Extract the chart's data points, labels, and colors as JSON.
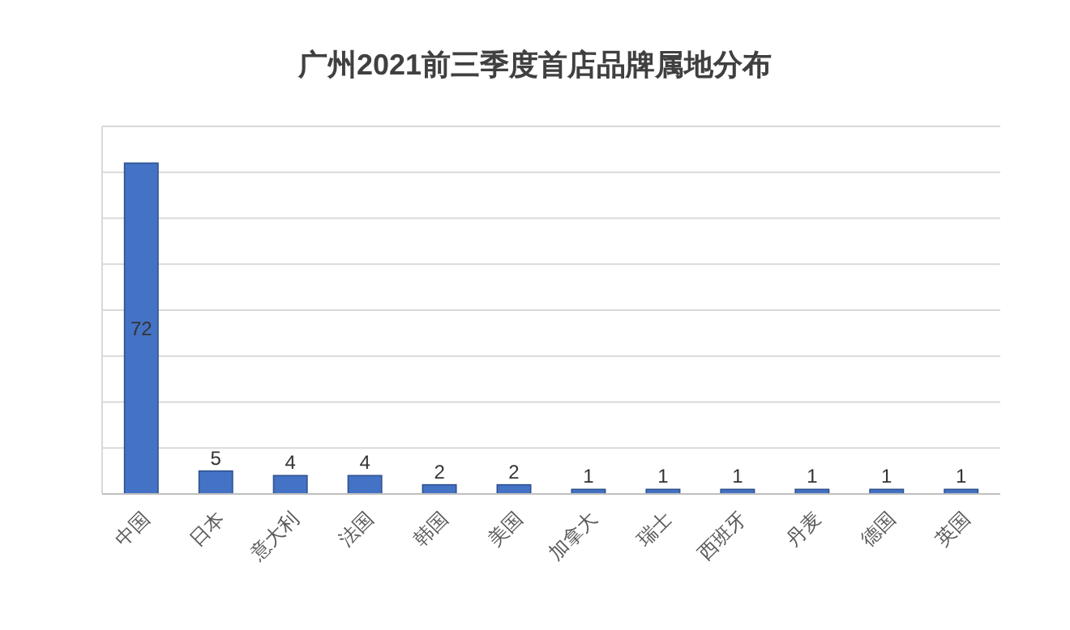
{
  "chart_data": {
    "type": "bar",
    "title": "广州2021前三季度首店品牌属地分布",
    "categories": [
      "中国",
      "日本",
      "意大利",
      "法国",
      "韩国",
      "美国",
      "加拿大",
      "瑞士",
      "西班牙",
      "丹麦",
      "德国",
      "英国"
    ],
    "values": [
      72,
      5,
      4,
      4,
      2,
      2,
      1,
      1,
      1,
      1,
      1,
      1
    ],
    "color": "#4472c4",
    "ylim": [
      0,
      80
    ],
    "yticks": [
      {
        "value": 0,
        "label": null
      },
      {
        "value": 10,
        "label": null
      },
      {
        "value": 20,
        "label": null
      },
      {
        "value": 30,
        "label": null
      },
      {
        "value": 40,
        "label": null
      },
      {
        "value": 50,
        "label": null
      },
      {
        "value": 60,
        "label": null
      },
      {
        "value": 70,
        "label": null
      },
      {
        "value": 80,
        "label": null
      }
    ],
    "grid": "y",
    "data_labels": true
  }
}
